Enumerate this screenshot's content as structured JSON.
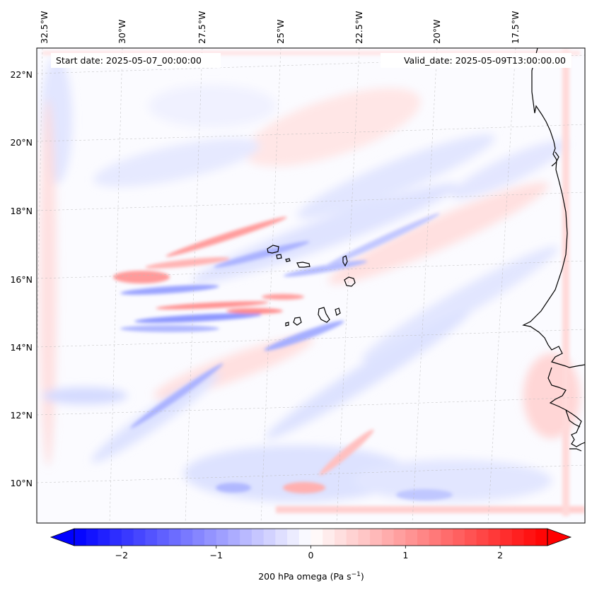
{
  "map": {
    "projection": "conic",
    "extent": {
      "lon_min": -32.7,
      "lon_max": -15.9,
      "lat_min": 8.9,
      "lat_max": 22.8
    },
    "field": "200 hPa omega",
    "top_axis_labels": [
      "32.5°W",
      "30°W",
      "27.5°W",
      "25°W",
      "22.5°W",
      "20°W",
      "17.5°W"
    ],
    "top_axis_lons": [
      -32.5,
      -30,
      -27.5,
      -25,
      -22.5,
      -20,
      -17.5
    ],
    "left_axis_labels": [
      "22°N",
      "20°N",
      "18°N",
      "16°N",
      "14°N",
      "12°N",
      "10°N"
    ],
    "left_axis_lats": [
      22,
      20,
      18,
      16,
      14,
      12,
      10
    ],
    "start_date_text": "Start date: 2025-05-07_00:00:00",
    "valid_date_text": "Valid_date: 2025-05-09T13:00:00.00",
    "gridlines": true,
    "coastline_color": "#000000",
    "islands": [
      "Santo Antão",
      "São Vicente",
      "Santa Luzia",
      "São Nicolau",
      "Sal",
      "Boa Vista",
      "Maio",
      "Santiago",
      "Fogo",
      "Brava"
    ]
  },
  "colorbar": {
    "label": "200 hPa omega (Pa s",
    "label_sup": "−1",
    "label_close": ")",
    "vmin": -2.5,
    "vmax": 2.5,
    "ticks": [
      -2,
      -1,
      0,
      1,
      2
    ],
    "tick_labels": [
      "−2",
      "−1",
      "0",
      "1",
      "2"
    ],
    "extend": "both",
    "colormap": "bwr",
    "low_color": "#0000ff",
    "mid_color": "#ffffff",
    "high_color": "#ff0000"
  }
}
